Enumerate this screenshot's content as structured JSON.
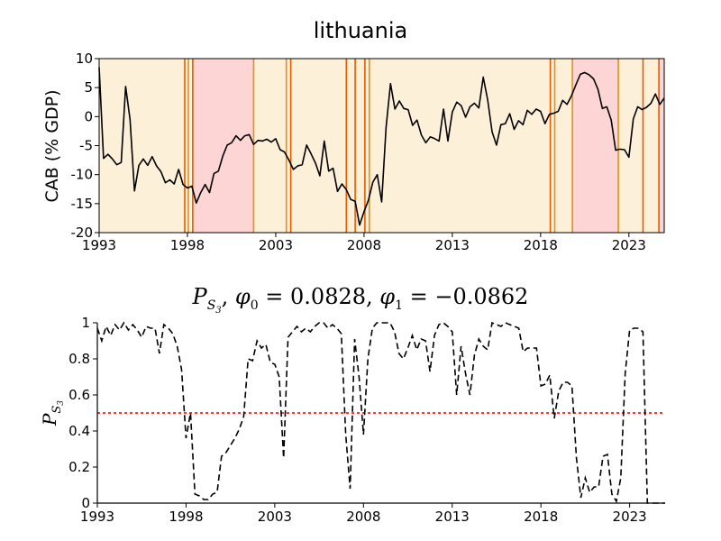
{
  "chart_data": [
    {
      "type": "line",
      "title": "lithuania",
      "xlabel": "",
      "ylabel": "CAB (% GDP)",
      "xlim": [
        1993.0,
        2025.0
      ],
      "ylim": [
        -20,
        10
      ],
      "x_ticks": [
        1993,
        1998,
        2003,
        2008,
        2013,
        2018,
        2023
      ],
      "x_tick_labels": [
        "1993",
        "1998",
        "2003",
        "2008",
        "2013",
        "2018",
        "2023"
      ],
      "y_ticks": [
        -20,
        -15,
        -10,
        -5,
        0,
        5,
        10
      ],
      "y_tick_labels": [
        "-20",
        "-15",
        "-10",
        "-5",
        "0",
        "5",
        "10"
      ],
      "grid": false,
      "regime_colors": {
        "regime_a": "#fdf0d8",
        "regime_b": "#fdd5d5"
      },
      "regimes": [
        {
          "start": 1993.0,
          "end": 1998.3,
          "regime": "regime_a"
        },
        {
          "start": 1998.3,
          "end": 2001.75,
          "regime": "regime_b"
        },
        {
          "start": 2001.75,
          "end": 2019.8,
          "regime": "regime_a"
        },
        {
          "start": 2019.8,
          "end": 2022.4,
          "regime": "regime_b"
        },
        {
          "start": 2022.4,
          "end": 2024.7,
          "regime": "regime_a"
        },
        {
          "start": 2024.7,
          "end": 2025.0,
          "regime": "regime_b"
        }
      ],
      "event_lines": [
        {
          "x": 1997.85,
          "color": "#e65a00"
        },
        {
          "x": 1998.05,
          "color": "#e09020"
        },
        {
          "x": 1998.3,
          "color": "#e65a00"
        },
        {
          "x": 2001.75,
          "color": "#e09020"
        },
        {
          "x": 2003.6,
          "color": "#e09020"
        },
        {
          "x": 2003.85,
          "color": "#e65a00"
        },
        {
          "x": 2007.0,
          "color": "#e65a00"
        },
        {
          "x": 2007.5,
          "color": "#e65a00"
        },
        {
          "x": 2008.05,
          "color": "#e65a00"
        },
        {
          "x": 2008.3,
          "color": "#e09020"
        },
        {
          "x": 2018.55,
          "color": "#e65a00"
        },
        {
          "x": 2018.8,
          "color": "#e09020"
        },
        {
          "x": 2019.8,
          "color": "#e09020"
        },
        {
          "x": 2022.4,
          "color": "#e09020"
        },
        {
          "x": 2023.8,
          "color": "#e65a00"
        },
        {
          "x": 2024.7,
          "color": "#e65a00"
        }
      ],
      "series": [
        {
          "color": "#000000",
          "style": "solid",
          "x": [
            1993.0,
            1993.25,
            1993.5,
            1993.75,
            1994.0,
            1994.25,
            1994.5,
            1994.75,
            1995.0,
            1995.25,
            1995.5,
            1995.75,
            1996.0,
            1996.25,
            1996.5,
            1996.75,
            1997.0,
            1997.25,
            1997.5,
            1997.75,
            1998.0,
            1998.25,
            1998.5,
            1998.75,
            1999.0,
            1999.25,
            1999.5,
            1999.75,
            2000.0,
            2000.25,
            2000.5,
            2000.75,
            2001.0,
            2001.25,
            2001.5,
            2001.75,
            2002.0,
            2002.25,
            2002.5,
            2002.75,
            2003.0,
            2003.25,
            2003.5,
            2003.75,
            2004.0,
            2004.25,
            2004.5,
            2004.75,
            2005.0,
            2005.25,
            2005.5,
            2005.75,
            2006.0,
            2006.25,
            2006.5,
            2006.75,
            2007.0,
            2007.25,
            2007.5,
            2007.75,
            2008.0,
            2008.25,
            2008.5,
            2008.75,
            2009.0,
            2009.25,
            2009.5,
            2009.75,
            2010.0,
            2010.25,
            2010.5,
            2010.75,
            2011.0,
            2011.25,
            2011.5,
            2011.75,
            2012.0,
            2012.25,
            2012.5,
            2012.75,
            2013.0,
            2013.25,
            2013.5,
            2013.75,
            2014.0,
            2014.25,
            2014.5,
            2014.75,
            2015.0,
            2015.25,
            2015.5,
            2015.75,
            2016.0,
            2016.25,
            2016.5,
            2016.75,
            2017.0,
            2017.25,
            2017.5,
            2017.75,
            2018.0,
            2018.25,
            2018.5,
            2018.75,
            2019.0,
            2019.25,
            2019.5,
            2019.75,
            2020.0,
            2020.25,
            2020.5,
            2020.75,
            2021.0,
            2021.25,
            2021.5,
            2021.75,
            2022.0,
            2022.25,
            2022.5,
            2022.75,
            2023.0,
            2023.25,
            2023.5,
            2023.75,
            2024.0,
            2024.25,
            2024.5,
            2024.75,
            2025.0
          ],
          "y": [
            8.5,
            -7.2,
            -6.5,
            -7.3,
            -8.3,
            -7.9,
            5.2,
            -0.5,
            -12.8,
            -8.4,
            -7.3,
            -8.4,
            -6.9,
            -8.5,
            -9.5,
            -11.4,
            -10.9,
            -11.6,
            -9.1,
            -11.7,
            -12.3,
            -12.0,
            -14.9,
            -13.1,
            -11.7,
            -13.1,
            -9.8,
            -9.4,
            -6.8,
            -4.9,
            -4.5,
            -3.3,
            -4.1,
            -3.3,
            -3.1,
            -4.8,
            -4.1,
            -4.2,
            -3.9,
            -4.4,
            -3.8,
            -5.7,
            -6.1,
            -7.5,
            -9.1,
            -8.5,
            -8.3,
            -4.9,
            -6.4,
            -8.0,
            -10.2,
            -4.2,
            -9.4,
            -8.9,
            -12.9,
            -11.6,
            -12.6,
            -14.3,
            -14.6,
            -18.7,
            -16.4,
            -14.4,
            -11.3,
            -10.0,
            -14.7,
            -1.8,
            5.7,
            1.3,
            2.7,
            1.4,
            1.2,
            -1.5,
            -0.6,
            -3.2,
            -4.5,
            -3.5,
            -3.8,
            -4.2,
            1.3,
            -4.2,
            0.8,
            2.5,
            1.9,
            -0.1,
            1.7,
            2.3,
            1.5,
            6.8,
            2.9,
            -2.6,
            -4.9,
            -1.4,
            -1.2,
            0.5,
            -2.2,
            -0.7,
            -1.4,
            1.1,
            0.4,
            1.3,
            0.9,
            -1.2,
            0.4,
            0.6,
            0.9,
            2.8,
            2.1,
            3.6,
            5.5,
            7.3,
            7.6,
            7.2,
            6.5,
            4.7,
            1.4,
            1.7,
            -0.6,
            -5.8,
            -5.6,
            -5.7,
            -7.0,
            -0.4,
            1.7,
            1.2,
            1.6,
            2.3,
            3.9,
            2.1,
            3.2
          ]
        }
      ]
    },
    {
      "type": "line",
      "title": "P_{S_3}, φ_0 = 0.0828, φ_1 = −0.0862",
      "xlabel": "",
      "ylabel": "P_{S_3}",
      "xlim": [
        1993.0,
        2025.0
      ],
      "ylim": [
        0,
        1
      ],
      "x_ticks": [
        1993,
        1998,
        2003,
        2008,
        2013,
        2018,
        2023
      ],
      "x_tick_labels": [
        "1993",
        "1998",
        "2003",
        "2008",
        "2013",
        "2018",
        "2023"
      ],
      "y_ticks": [
        0,
        0.2,
        0.4,
        0.6,
        0.8,
        1
      ],
      "y_tick_labels": [
        "0",
        "0.2",
        "0.4",
        "0.6",
        "0.8",
        "1"
      ],
      "grid": false,
      "threshold": {
        "y": 0.5,
        "color": "#e00000",
        "style": "dotted"
      },
      "series": [
        {
          "color": "#000000",
          "style": "dashed",
          "x": [
            1993.0,
            1993.25,
            1993.5,
            1993.75,
            1994.0,
            1994.25,
            1994.5,
            1994.75,
            1995.0,
            1995.25,
            1995.5,
            1995.75,
            1996.0,
            1996.25,
            1996.5,
            1996.75,
            1997.0,
            1997.25,
            1997.5,
            1997.75,
            1998.0,
            1998.25,
            1998.5,
            1998.75,
            1999.0,
            1999.25,
            1999.5,
            1999.75,
            2000.0,
            2000.25,
            2000.5,
            2000.75,
            2001.0,
            2001.25,
            2001.5,
            2001.75,
            2002.0,
            2002.25,
            2002.5,
            2002.75,
            2003.0,
            2003.25,
            2003.5,
            2003.75,
            2004.0,
            2004.25,
            2004.5,
            2004.75,
            2005.0,
            2005.25,
            2005.5,
            2005.75,
            2006.0,
            2006.25,
            2006.5,
            2006.75,
            2007.0,
            2007.25,
            2007.5,
            2007.75,
            2008.0,
            2008.25,
            2008.5,
            2008.75,
            2009.0,
            2009.25,
            2009.5,
            2009.75,
            2010.0,
            2010.25,
            2010.5,
            2010.75,
            2011.0,
            2011.25,
            2011.5,
            2011.75,
            2012.0,
            2012.25,
            2012.5,
            2012.75,
            2013.0,
            2013.25,
            2013.5,
            2013.75,
            2014.0,
            2014.25,
            2014.5,
            2014.75,
            2015.0,
            2015.25,
            2015.5,
            2015.75,
            2016.0,
            2016.25,
            2016.5,
            2016.75,
            2017.0,
            2017.25,
            2017.5,
            2017.75,
            2018.0,
            2018.25,
            2018.5,
            2018.75,
            2019.0,
            2019.25,
            2019.5,
            2019.75,
            2020.0,
            2020.25,
            2020.5,
            2020.75,
            2021.0,
            2021.25,
            2021.5,
            2021.75,
            2022.0,
            2022.25,
            2022.5,
            2022.75,
            2023.0,
            2023.25,
            2023.5,
            2023.75,
            2024.0,
            2024.25,
            2024.5,
            2024.75,
            2025.0
          ],
          "y": [
            0.97,
            0.9,
            0.98,
            0.93,
            0.99,
            0.96,
            1.0,
            0.96,
            0.99,
            0.96,
            0.92,
            0.98,
            0.97,
            0.97,
            0.83,
            0.99,
            0.97,
            0.94,
            0.87,
            0.74,
            0.36,
            0.5,
            0.05,
            0.04,
            0.02,
            0.02,
            0.05,
            0.06,
            0.26,
            0.28,
            0.32,
            0.36,
            0.41,
            0.48,
            0.8,
            0.79,
            0.9,
            0.86,
            0.88,
            0.78,
            0.77,
            0.7,
            0.25,
            0.92,
            0.95,
            0.98,
            0.95,
            0.97,
            0.95,
            0.98,
            1.0,
            1.0,
            0.97,
            0.99,
            0.97,
            0.94,
            0.38,
            0.08,
            0.91,
            0.7,
            0.38,
            0.8,
            0.97,
            1.0,
            1.0,
            1.0,
            1.0,
            0.95,
            0.83,
            0.8,
            0.86,
            0.93,
            0.85,
            0.91,
            0.9,
            0.73,
            0.93,
            0.99,
            1.0,
            0.98,
            0.95,
            0.6,
            0.87,
            0.72,
            0.6,
            0.82,
            0.91,
            0.87,
            0.85,
            1.0,
            0.99,
            0.98,
            1.0,
            0.99,
            0.98,
            0.97,
            0.84,
            0.86,
            0.86,
            0.86,
            0.65,
            0.66,
            0.71,
            0.47,
            0.62,
            0.67,
            0.67,
            0.65,
            0.25,
            0.03,
            0.14,
            0.06,
            0.09,
            0.09,
            0.26,
            0.27,
            0.05,
            0.01,
            0.14,
            0.72,
            0.96,
            0.97,
            0.97,
            0.95,
            0.0,
            0.0,
            0.0,
            0.0,
            0.0
          ]
        }
      ]
    }
  ]
}
